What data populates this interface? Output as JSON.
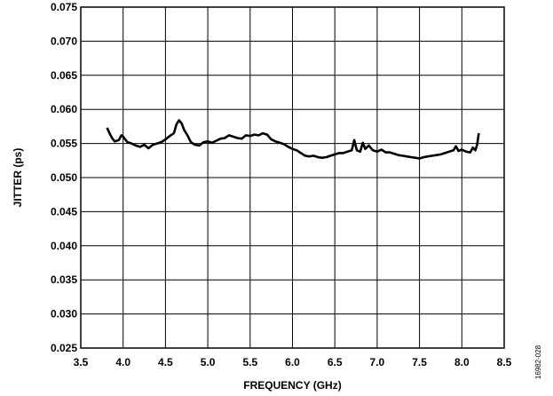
{
  "chart_data": {
    "type": "line",
    "title": "",
    "xlabel": "FREQUENCY (GHz)",
    "ylabel": "JITTER (ps)",
    "xlim": [
      3.5,
      8.5
    ],
    "ylim": [
      0.025,
      0.075
    ],
    "xticks": [
      "3.5",
      "4.0",
      "4.5",
      "5.0",
      "5.5",
      "6.0",
      "6.5",
      "7.0",
      "7.5",
      "8.0",
      "8.5"
    ],
    "yticks": [
      "0.075",
      "0.070",
      "0.065",
      "0.060",
      "0.055",
      "0.050",
      "0.045",
      "0.040",
      "0.035",
      "0.030",
      "0.025"
    ],
    "grid": true,
    "line_color": "#000000",
    "series": [
      {
        "x": [
          3.81,
          3.84,
          3.87,
          3.9,
          3.95,
          3.98,
          4.0,
          4.05,
          4.1,
          4.15,
          4.2,
          4.25,
          4.3,
          4.35,
          4.4,
          4.45,
          4.5,
          4.55,
          4.6,
          4.63,
          4.66,
          4.69,
          4.72,
          4.76,
          4.8,
          4.85,
          4.9,
          4.95,
          5.0,
          5.05,
          5.1,
          5.15,
          5.2,
          5.25,
          5.3,
          5.35,
          5.4,
          5.45,
          5.5,
          5.55,
          5.6,
          5.65,
          5.7,
          5.75,
          5.8,
          5.85,
          5.9,
          5.95,
          6.0,
          6.05,
          6.1,
          6.15,
          6.2,
          6.25,
          6.3,
          6.35,
          6.4,
          6.45,
          6.5,
          6.55,
          6.6,
          6.65,
          6.7,
          6.73,
          6.76,
          6.8,
          6.83,
          6.86,
          6.9,
          6.95,
          7.0,
          7.05,
          7.1,
          7.15,
          7.2,
          7.25,
          7.3,
          7.35,
          7.4,
          7.45,
          7.5,
          7.55,
          7.6,
          7.65,
          7.7,
          7.75,
          7.8,
          7.85,
          7.9,
          7.93,
          7.96,
          8.0,
          8.05,
          8.1,
          8.13,
          8.16,
          8.18,
          8.2
        ],
        "y": [
          0.0573,
          0.0565,
          0.0558,
          0.0553,
          0.0555,
          0.0562,
          0.056,
          0.0552,
          0.055,
          0.0547,
          0.0545,
          0.0548,
          0.0543,
          0.0548,
          0.055,
          0.0552,
          0.0556,
          0.0561,
          0.0565,
          0.0578,
          0.0584,
          0.058,
          0.057,
          0.0562,
          0.0552,
          0.0548,
          0.0547,
          0.0552,
          0.0553,
          0.0551,
          0.0554,
          0.0557,
          0.0558,
          0.0562,
          0.056,
          0.0558,
          0.0557,
          0.0562,
          0.0561,
          0.0563,
          0.0562,
          0.0565,
          0.0563,
          0.0556,
          0.0553,
          0.0551,
          0.0549,
          0.0545,
          0.0542,
          0.054,
          0.0536,
          0.0532,
          0.0531,
          0.0532,
          0.053,
          0.0529,
          0.053,
          0.0532,
          0.0534,
          0.0536,
          0.0536,
          0.0538,
          0.054,
          0.0555,
          0.054,
          0.0538,
          0.0551,
          0.0542,
          0.0547,
          0.054,
          0.0538,
          0.0541,
          0.0537,
          0.0537,
          0.0535,
          0.0533,
          0.0532,
          0.0531,
          0.053,
          0.0529,
          0.0528,
          0.053,
          0.0531,
          0.0532,
          0.0533,
          0.0534,
          0.0536,
          0.0538,
          0.054,
          0.0546,
          0.0539,
          0.0541,
          0.0538,
          0.0537,
          0.0544,
          0.054,
          0.0548,
          0.0565
        ]
      }
    ]
  },
  "figure_id": "16982-028"
}
